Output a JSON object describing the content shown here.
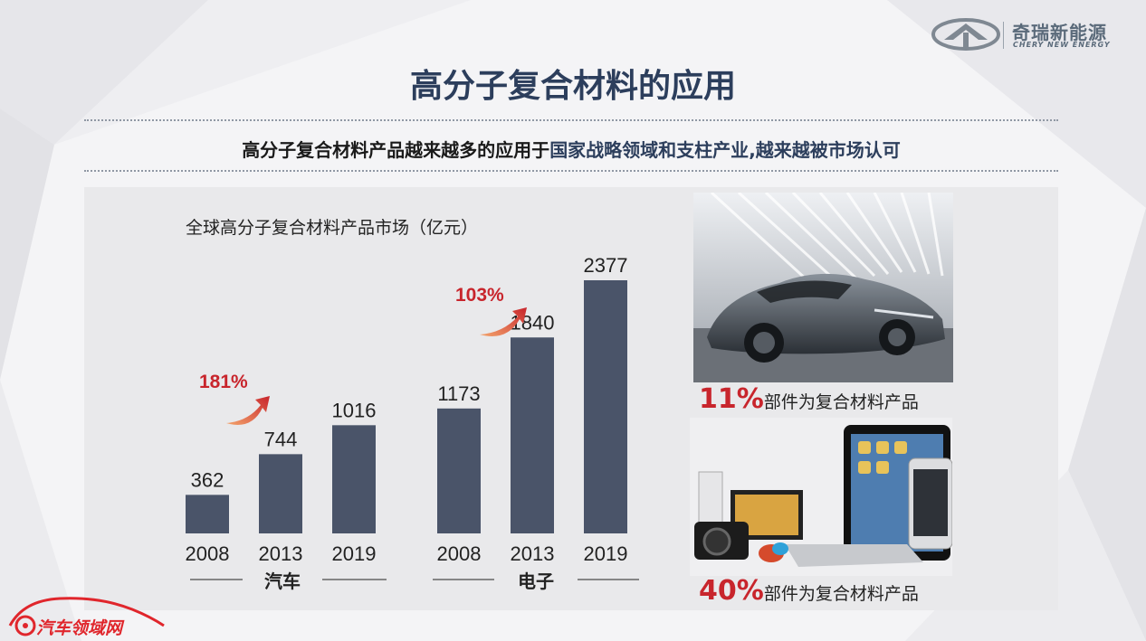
{
  "header": {
    "brand_cn": "奇瑞新能源",
    "brand_en": "CHERY NEW ENERGY",
    "title": "高分子复合材料的应用",
    "subtitle_part1": "高分子复合材料产品越来越多的应用于",
    "subtitle_part2": "国家战略领域和支柱产业",
    "subtitle_part3": ",越来越被市场认可"
  },
  "chart_data": {
    "type": "bar",
    "title": "全球高分子复合材料产品市场（亿元）",
    "groups": [
      {
        "name": "汽车",
        "categories": [
          "2008",
          "2013",
          "2019"
        ],
        "values": [
          362,
          744,
          1016
        ],
        "growth_label": "181%"
      },
      {
        "name": "电子",
        "categories": [
          "2008",
          "2013",
          "2019"
        ],
        "values": [
          1173,
          1840,
          2377
        ],
        "growth_label": "103%"
      }
    ],
    "ylim": [
      0,
      2377
    ],
    "bar_color": "#4a5469",
    "label_color": "#c8252c"
  },
  "side": {
    "car_stat_pct": "11%",
    "car_stat_text": "部件为复合材料产品",
    "elec_stat_pct": "40%",
    "elec_stat_text": "部件为复合材料产品"
  },
  "watermark": {
    "text": "汽车领域网"
  }
}
